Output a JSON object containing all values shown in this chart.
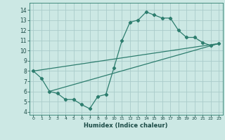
{
  "title": "",
  "xlabel": "Humidex (Indice chaleur)",
  "bg_color": "#cce8e4",
  "line_color": "#2d7d6e",
  "grid_color": "#aaccca",
  "xlim": [
    -0.5,
    23.5
  ],
  "ylim": [
    3.7,
    14.7
  ],
  "xticks": [
    0,
    1,
    2,
    3,
    4,
    5,
    6,
    7,
    8,
    9,
    10,
    11,
    12,
    13,
    14,
    15,
    16,
    17,
    18,
    19,
    20,
    21,
    22,
    23
  ],
  "yticks": [
    4,
    5,
    6,
    7,
    8,
    9,
    10,
    11,
    12,
    13,
    14
  ],
  "series": [
    [
      0,
      8.0
    ],
    [
      1,
      7.3
    ],
    [
      2,
      6.0
    ],
    [
      3,
      5.8
    ],
    [
      4,
      5.2
    ],
    [
      5,
      5.2
    ],
    [
      6,
      4.7
    ],
    [
      7,
      4.3
    ],
    [
      8,
      5.5
    ],
    [
      9,
      5.7
    ],
    [
      10,
      8.3
    ],
    [
      11,
      11.0
    ],
    [
      12,
      12.8
    ],
    [
      13,
      13.0
    ],
    [
      14,
      13.8
    ],
    [
      15,
      13.5
    ],
    [
      16,
      13.2
    ],
    [
      17,
      13.2
    ],
    [
      18,
      12.0
    ],
    [
      19,
      11.3
    ],
    [
      20,
      11.3
    ],
    [
      21,
      10.8
    ],
    [
      22,
      10.5
    ],
    [
      23,
      10.7
    ]
  ],
  "line2": [
    [
      0,
      8.0
    ],
    [
      23,
      10.7
    ]
  ],
  "line3": [
    [
      2,
      6.0
    ],
    [
      23,
      10.7
    ]
  ],
  "marker_size": 2.2,
  "line_width": 0.9
}
